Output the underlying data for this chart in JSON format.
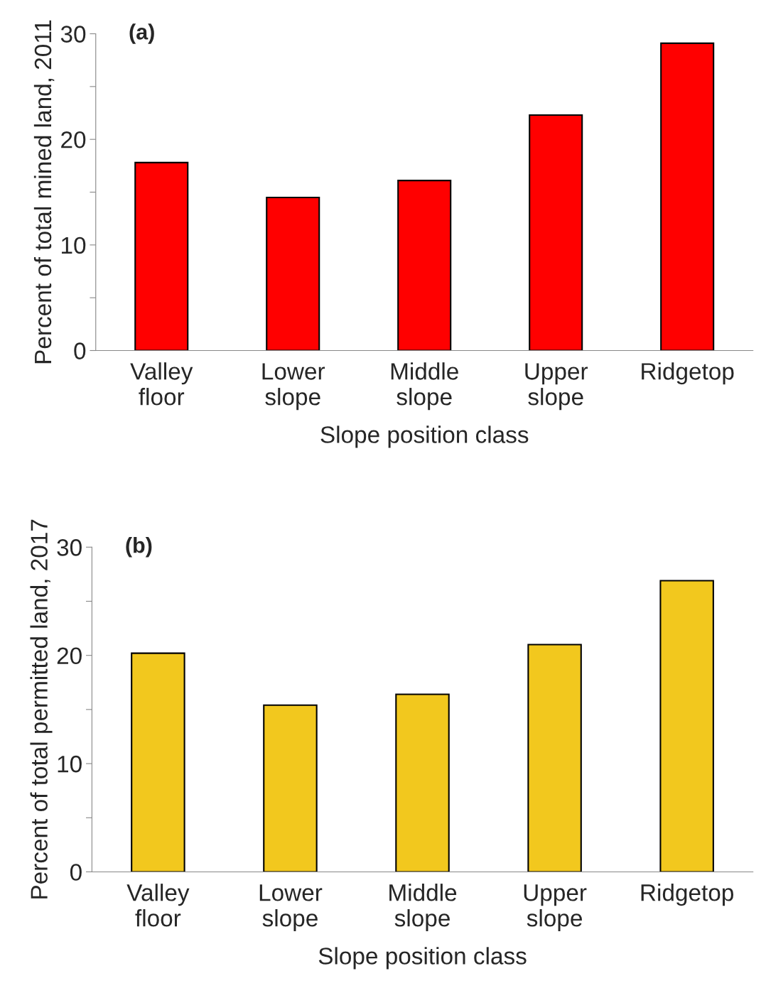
{
  "chart_data": [
    {
      "type": "bar",
      "title": "(a)",
      "xlabel": "Slope position class",
      "ylabel": "Percent of total mined land, 2011",
      "categories": [
        "Valley\nfloor",
        "Lower\nslope",
        "Middle\nslope",
        "Upper\nslope",
        "Ridgetop"
      ],
      "values": [
        17.8,
        14.5,
        16.1,
        22.3,
        29.1
      ],
      "color": "#ff0000",
      "ylim": [
        0,
        30
      ],
      "yticks": [
        0,
        {
          "value": 5,
          "label": null
        },
        10,
        {
          "value": 15,
          "label": null
        },
        20,
        {
          "value": 25,
          "label": null
        },
        30
      ],
      "grid": false,
      "legend": false
    },
    {
      "type": "bar",
      "title": "(b)",
      "xlabel": "Slope position class",
      "ylabel": "Percent of total permitted land, 2017",
      "categories": [
        "Valley\nfloor",
        "Lower\nslope",
        "Middle\nslope",
        "Upper\nslope",
        "Ridgetop"
      ],
      "values": [
        20.2,
        15.4,
        16.4,
        21.0,
        26.9
      ],
      "color": "#f2c81e",
      "ylim": [
        0,
        30
      ],
      "yticks": [
        0,
        {
          "value": 5,
          "label": null
        },
        10,
        {
          "value": 15,
          "label": null
        },
        20,
        {
          "value": 25,
          "label": null
        },
        30
      ],
      "grid": false,
      "legend": false
    }
  ]
}
